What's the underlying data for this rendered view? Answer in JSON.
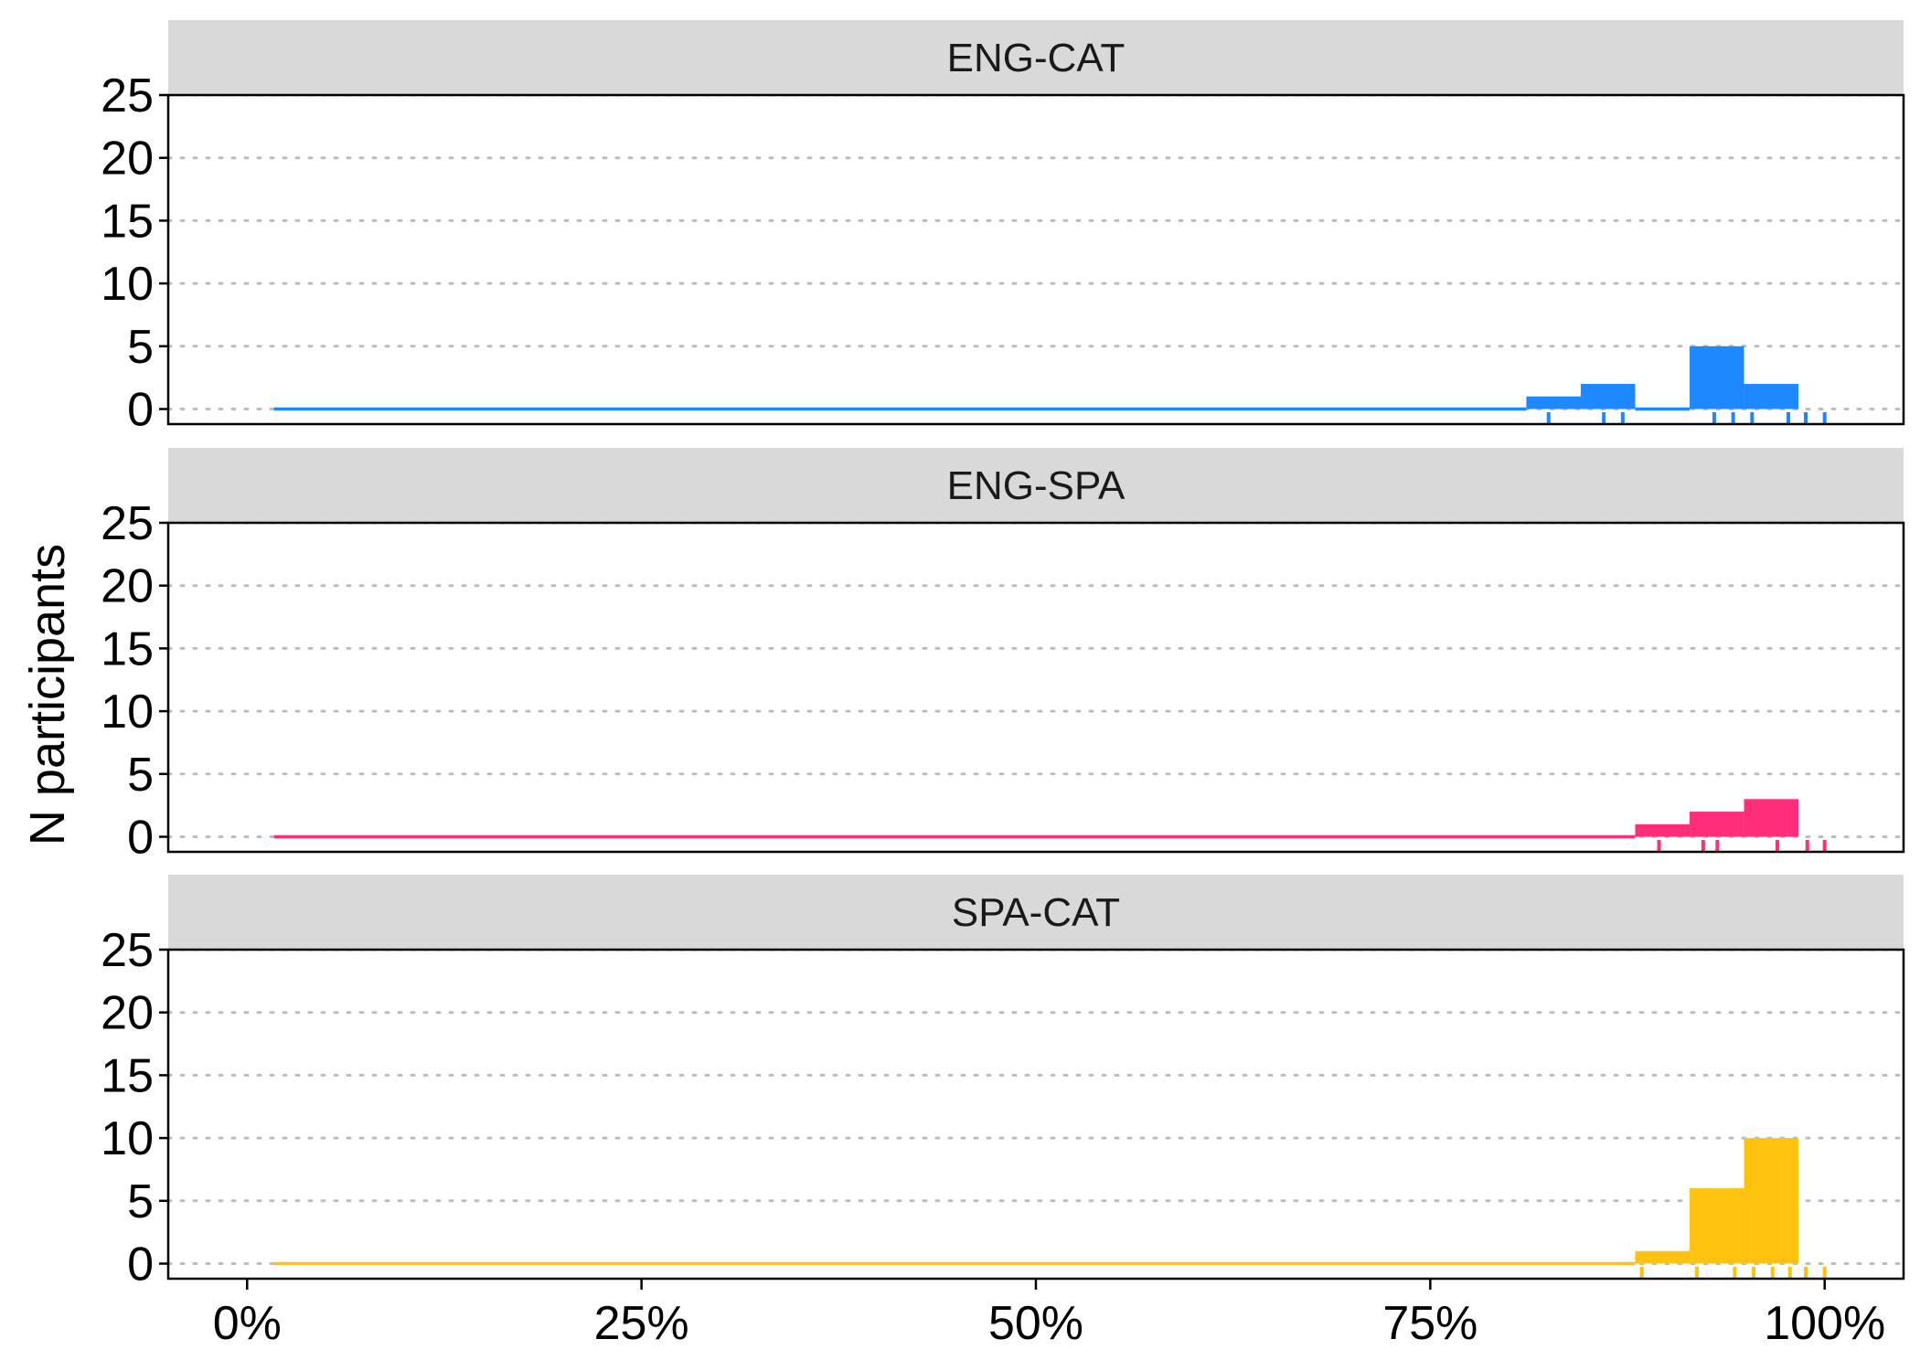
{
  "chart_data": {
    "type": "bar",
    "ylabel": "N participants",
    "xlabel": "",
    "xlim": [
      -0.05,
      1.05
    ],
    "ylim": [
      -1.2,
      25
    ],
    "x_ticks": [
      {
        "value": 0.0,
        "label": "0%"
      },
      {
        "value": 0.25,
        "label": "25%"
      },
      {
        "value": 0.5,
        "label": "50%"
      },
      {
        "value": 0.75,
        "label": "75%"
      },
      {
        "value": 1.0,
        "label": "100%"
      }
    ],
    "y_ticks": [
      0,
      5,
      10,
      15,
      20,
      25
    ],
    "grid": "horizontal dotted",
    "bin_width": 0.0345,
    "panels": [
      {
        "name": "ENG-CAT",
        "color": "#1E88FF",
        "bins": [
          {
            "x0": 0.017,
            "x1": 0.8109,
            "count": 0
          },
          {
            "x0": 0.8109,
            "x1": 0.8454,
            "count": 1
          },
          {
            "x0": 0.8454,
            "x1": 0.8799,
            "count": 2
          },
          {
            "x0": 0.8799,
            "x1": 0.9144,
            "count": 0
          },
          {
            "x0": 0.9144,
            "x1": 0.9489,
            "count": 5
          },
          {
            "x0": 0.9489,
            "x1": 0.9834,
            "count": 2
          }
        ],
        "rug": [
          0.825,
          0.86,
          0.872,
          0.93,
          0.942,
          0.954,
          0.977,
          0.988,
          1.0
        ]
      },
      {
        "name": "ENG-SPA",
        "color": "#FF2D7A",
        "bins": [
          {
            "x0": 0.017,
            "x1": 0.8799,
            "count": 0
          },
          {
            "x0": 0.8799,
            "x1": 0.9144,
            "count": 1
          },
          {
            "x0": 0.9144,
            "x1": 0.9489,
            "count": 2
          },
          {
            "x0": 0.9489,
            "x1": 0.9834,
            "count": 3
          }
        ],
        "rug": [
          0.895,
          0.923,
          0.932,
          0.97,
          0.989,
          1.0
        ]
      },
      {
        "name": "SPA-CAT",
        "color": "#FFC20E",
        "bins": [
          {
            "x0": 0.017,
            "x1": 0.8799,
            "count": 0
          },
          {
            "x0": 0.8799,
            "x1": 0.9144,
            "count": 1
          },
          {
            "x0": 0.9144,
            "x1": 0.9489,
            "count": 6
          },
          {
            "x0": 0.9489,
            "x1": 0.9834,
            "count": 10
          }
        ],
        "rug": [
          0.884,
          0.919,
          0.943,
          0.955,
          0.967,
          0.978,
          0.988,
          1.0
        ]
      }
    ]
  }
}
